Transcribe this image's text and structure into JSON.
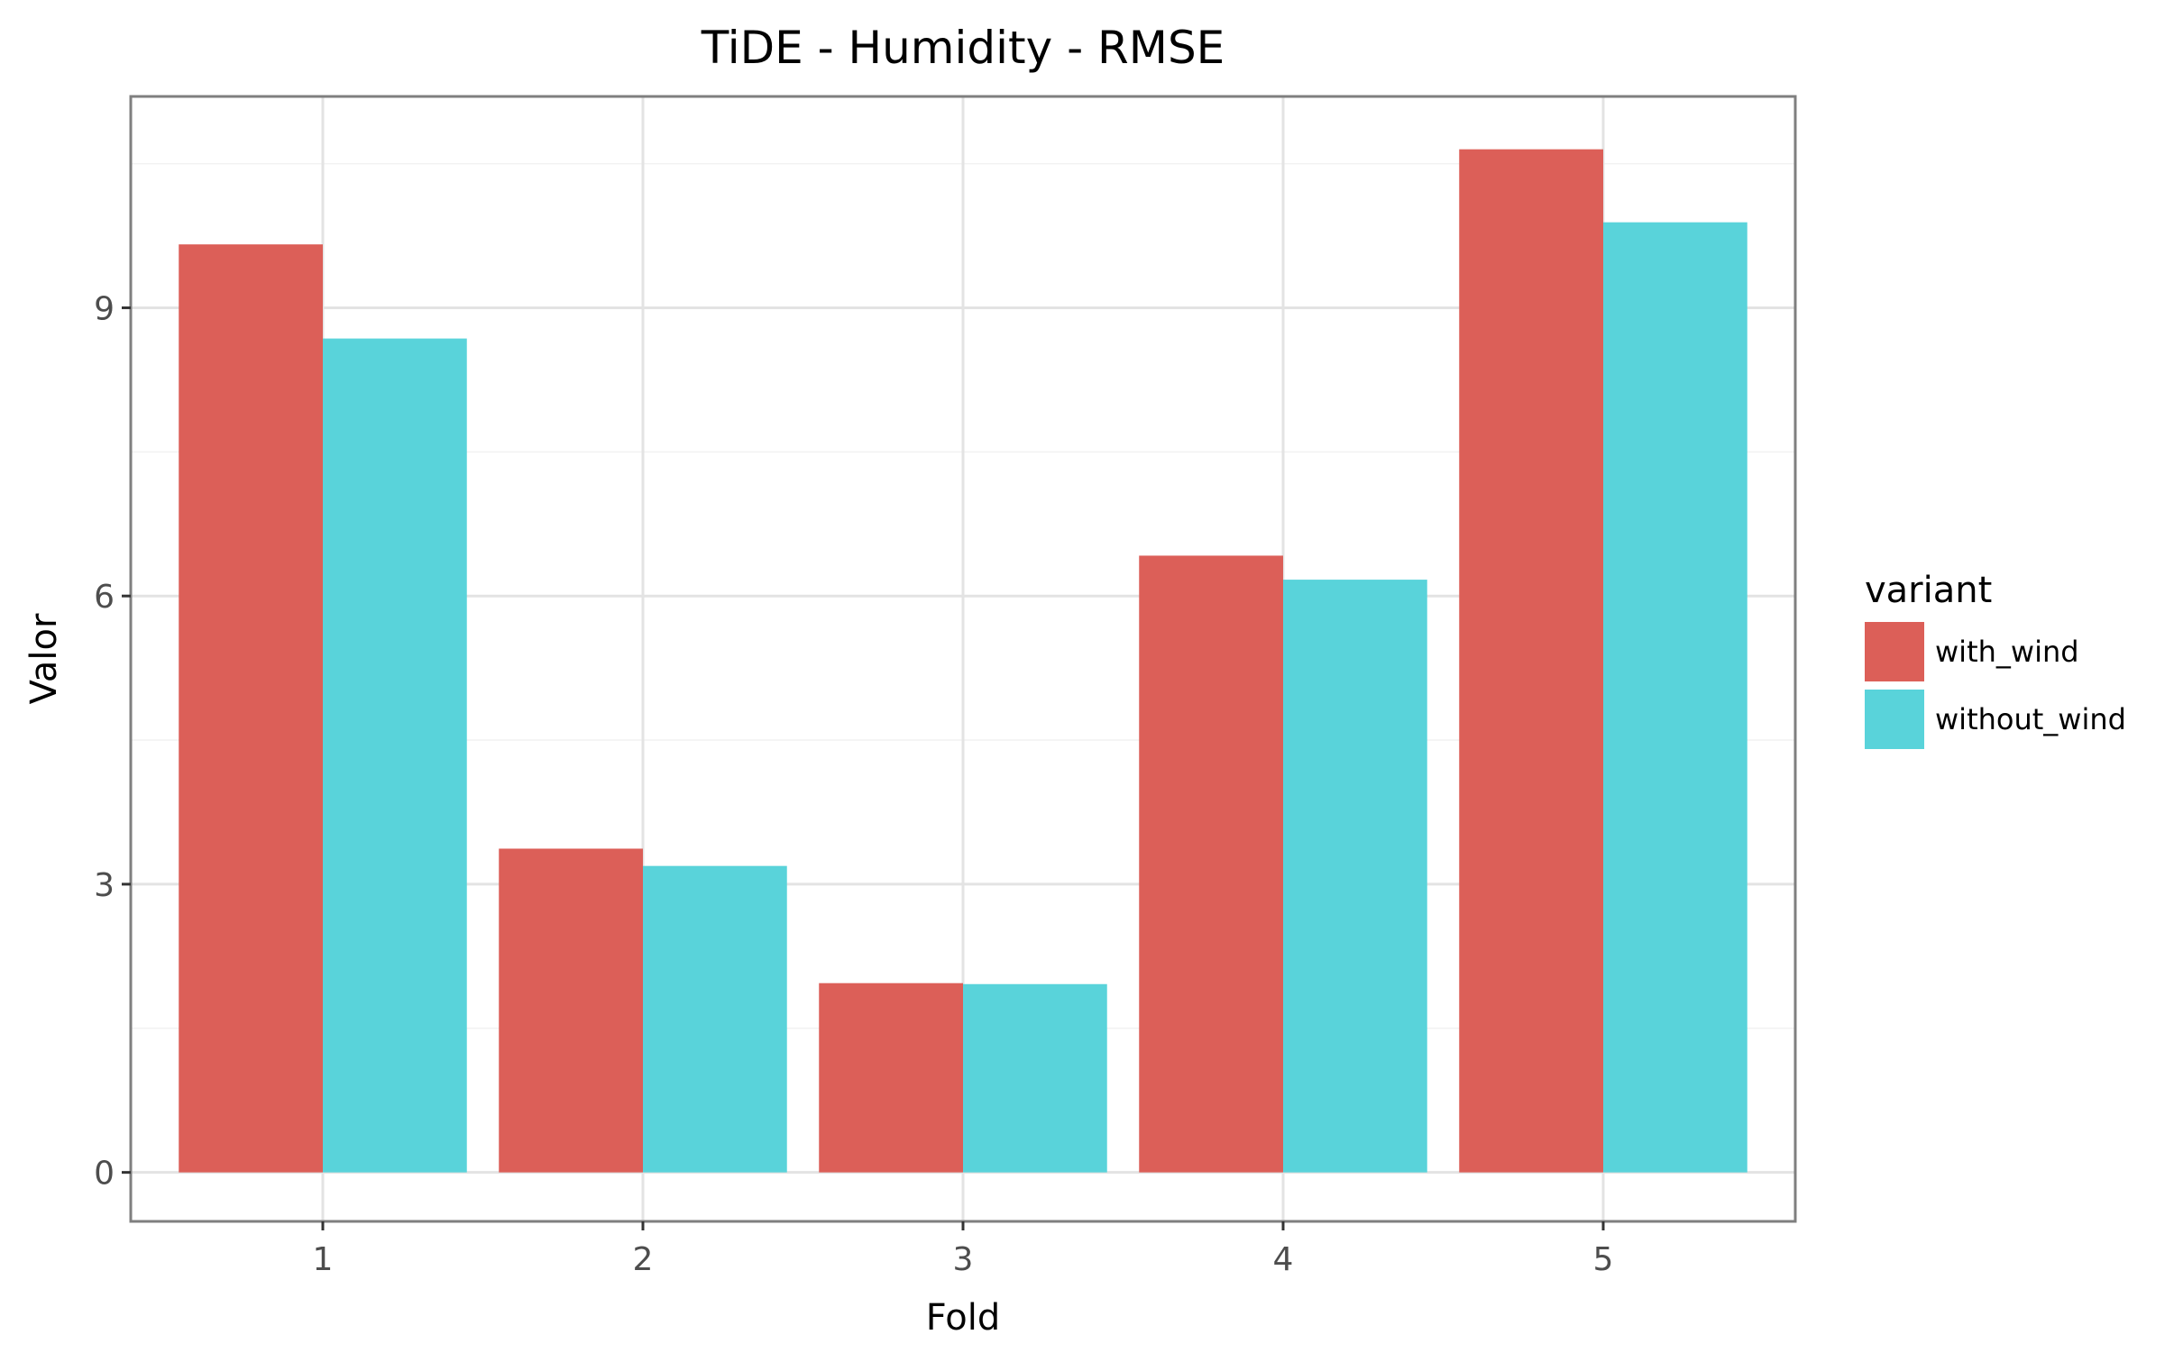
{
  "chart_data": {
    "type": "bar",
    "title": "TiDE - Humidity - RMSE",
    "xlabel": "Fold",
    "ylabel": "Valor",
    "categories": [
      "1",
      "2",
      "3",
      "4",
      "5"
    ],
    "series": [
      {
        "name": "with_wind",
        "color": "#dc5f58",
        "values": [
          9.66,
          3.37,
          1.97,
          6.42,
          10.65
        ]
      },
      {
        "name": "without_wind",
        "color": "#59d3da",
        "values": [
          8.68,
          3.19,
          1.96,
          6.17,
          9.89
        ]
      }
    ],
    "yticks": [
      0,
      3,
      6,
      9
    ],
    "ylim": [
      -0.51,
      11.2
    ],
    "legend": {
      "title": "variant",
      "position": "right"
    },
    "grid": true
  }
}
